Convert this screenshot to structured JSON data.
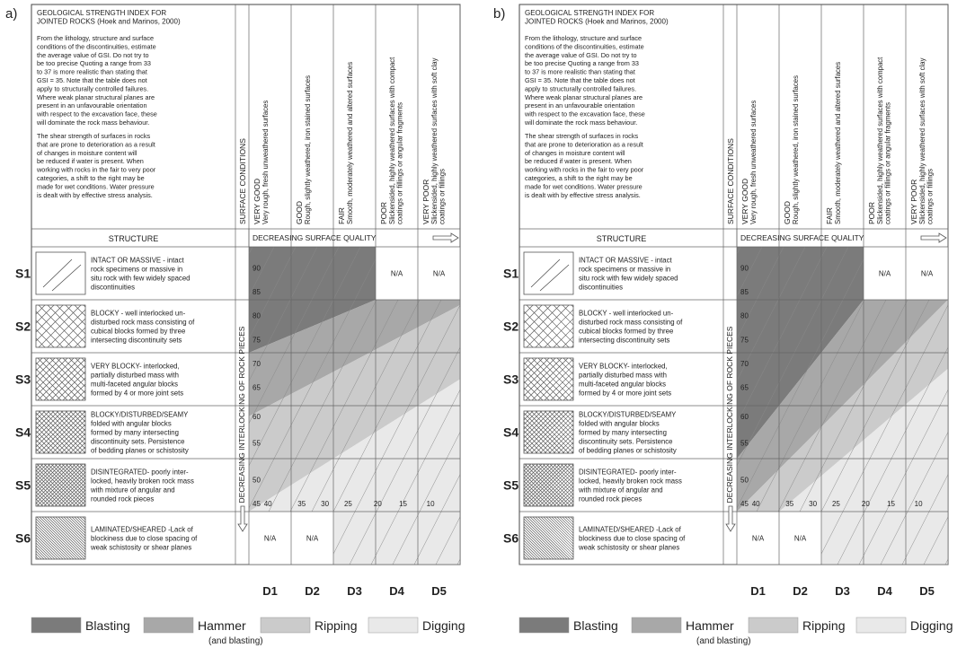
{
  "panels": [
    {
      "label": "a)",
      "title": [
        "GEOLOGICAL STRENGTH INDEX FOR",
        "JOINTED ROCKS (Hoek and Marinos, 2000)"
      ],
      "paragraph_1": [
        "From the lithology, structure and surface",
        "conditions of the discontinuities, estimate",
        "the average value of GSI. Do not try to",
        "be too precise Quoting a range from 33",
        " to 37 is more realistic than stating that",
        "GSI = 35. Note that the table does not",
        "apply to structurally controlled failures.",
        "Where weak planar structural planes are",
        "present in an unfavourable orientation",
        "with respect to the excavation face, these",
        "will dominate the rock mass behaviour."
      ],
      "paragraph_2": [
        "The shear strength of surfaces in rocks",
        "that are prone to deterioration as a result",
        "of changes in moisture content will",
        "be reduced if water is present. When",
        "working with rocks in the fair to very poor",
        "categories, a shift to the right may be",
        "made for wet conditions. Water pressure",
        "is dealt with by effective stress analysis."
      ],
      "structure_header": "STRUCTURE",
      "surface_header": "SURFACE CONDITIONS",
      "surface_axis": "DECREASING SURFACE QUALITY",
      "interlocking_axis": "DECREASING INTERLOCKING OF ROCK PIECES",
      "columns": [
        {
          "code": "D1",
          "class": "VERY GOOD",
          "desc": [
            "Very rough, fresh unweathered surfaces"
          ]
        },
        {
          "code": "D2",
          "class": "GOOD",
          "desc": [
            "Rough, slightly weathered, iron stained surfaces"
          ]
        },
        {
          "code": "D3",
          "class": "FAIR",
          "desc": [
            "Smooth, moderately weathered and altered surfaces"
          ]
        },
        {
          "code": "D4",
          "class": "POOR",
          "desc": [
            "Slickensided, highly weathered surfaces with compact",
            "coatings or fillings or angular fragments"
          ]
        },
        {
          "code": "D5",
          "class": "VERY POOR",
          "desc": [
            "Slickensided, highly weathered surfaces with soft clay",
            "coatings or fillings"
          ]
        }
      ],
      "rows": [
        {
          "code": "S1",
          "desc": [
            "INTACT OR MASSIVE  - intact",
            "rock specimens or massive in",
            "situ rock with few widely spaced",
            "discontinuities"
          ]
        },
        {
          "code": "S2",
          "desc": [
            "BLOCKY - well interlocked un-",
            "disturbed rock mass consisting of",
            "cubical blocks formed by three",
            "intersecting discontinuity sets"
          ]
        },
        {
          "code": "S3",
          "desc": [
            "VERY BLOCKY- interlocked,",
            "partially disturbed mass with",
            "multi-faceted angular blocks",
            "formed by 4 or more joint sets"
          ]
        },
        {
          "code": "S4",
          "desc": [
            "BLOCKY/DISTURBED/SEAMY",
            "folded with angular blocks",
            "formed by many intersecting",
            "discontinuity sets. Persistence",
            "of bedding planes or schistosity"
          ]
        },
        {
          "code": "S5",
          "desc": [
            "DISINTEGRATED- poorly inter-",
            "locked, heavily broken rock mass",
            "with mixture of angular and",
            "rounded rock pieces"
          ]
        },
        {
          "code": "S6",
          "desc": [
            "LAMINATED/SHEARED -Lack of",
            "blockiness due to close spacing of",
            "weak schistosity or shear planes"
          ]
        }
      ],
      "gsi_left": [
        90,
        85,
        80,
        75,
        70,
        65,
        60,
        55,
        50,
        45
      ],
      "gsi_bottom": [
        40,
        35,
        30,
        25,
        20,
        15,
        10
      ],
      "na": [
        "N/A",
        "N/A",
        "N/A",
        "N/A"
      ],
      "legend": [
        {
          "label": "Blasting",
          "color": "#7b7b7b"
        },
        {
          "label": "Hammer",
          "note": "(and blasting)",
          "color": "#a8a8a8"
        },
        {
          "label": "Ripping",
          "color": "#cbcbcb"
        },
        {
          "label": "Digging",
          "color": "#e9e9e9"
        }
      ]
    },
    {
      "label": "b)",
      "title": [
        "GEOLOGICAL STRENGTH INDEX FOR",
        "JOINTED ROCKS (Hoek and Marinos, 2000)"
      ],
      "paragraph_1": [
        "From the lithology, structure and surface",
        "conditions of the discontinuities, estimate",
        "the average value of GSI. Do not try to",
        "be too precise Quoting a range from 33",
        " to 37 is more realistic than stating that",
        "GSI = 35. Note that the table does not",
        "apply to structurally controlled failures.",
        "Where weak planar structural planes are",
        "present in an unfavourable orientation",
        "with respect to the excavation face, these",
        "will dominate the rock mass behaviour."
      ],
      "paragraph_2": [
        "The shear strength of surfaces in rocks",
        "that are prone to deterioration as a result",
        "of changes in moisture content will",
        "be reduced if water is present. When",
        "working with rocks in the fair to very poor",
        "categories, a shift to the right may be",
        "made for wet conditions. Water pressure",
        "is dealt with by effective stress analysis."
      ],
      "structure_header": "STRUCTURE",
      "surface_header": "SURFACE CONDITIONS",
      "surface_axis": "DECREASING SURFACE QUALITY",
      "interlocking_axis": "DECREASING INTERLOCKING OF ROCK PIECES",
      "columns": [
        {
          "code": "D1",
          "class": "VERY GOOD",
          "desc": [
            "Very rough, fresh unweathered surfaces"
          ]
        },
        {
          "code": "D2",
          "class": "GOOD",
          "desc": [
            "Rough, slightly weathered, iron stained surfaces"
          ]
        },
        {
          "code": "D3",
          "class": "FAIR",
          "desc": [
            "Smooth, moderately weathered and altered surfaces"
          ]
        },
        {
          "code": "D4",
          "class": "POOR",
          "desc": [
            "Slickensided, highly weathered surfaces with compact",
            "coatings or fillings or angular fragments"
          ]
        },
        {
          "code": "D5",
          "class": "VERY POOR",
          "desc": [
            "Slickensided, highly weathered surfaces with soft clay",
            "coatings or fillings"
          ]
        }
      ],
      "rows": [
        {
          "code": "S1",
          "desc": [
            "INTACT OR MASSIVE  - intact",
            "rock specimens or massive in",
            "situ rock with few widely spaced",
            "discontinuities"
          ]
        },
        {
          "code": "S2",
          "desc": [
            "BLOCKY - well interlocked un-",
            "disturbed rock mass consisting of",
            "cubical blocks formed by three",
            "intersecting discontinuity sets"
          ]
        },
        {
          "code": "S3",
          "desc": [
            "VERY BLOCKY- interlocked,",
            "partially disturbed mass with",
            "multi-faceted angular blocks",
            "formed by 4 or more joint sets"
          ]
        },
        {
          "code": "S4",
          "desc": [
            "BLOCKY/DISTURBED/SEAMY",
            "folded with angular blocks",
            "formed by many intersecting",
            "discontinuity sets. Persistence",
            "of bedding planes or schistosity"
          ]
        },
        {
          "code": "S5",
          "desc": [
            "DISINTEGRATED- poorly inter-",
            "locked, heavily broken rock mass",
            "with mixture of angular and",
            "rounded rock pieces"
          ]
        },
        {
          "code": "S6",
          "desc": [
            "LAMINATED/SHEARED -Lack of",
            "blockiness due to close spacing of",
            "weak schistosity or shear planes"
          ]
        }
      ],
      "gsi_left": [
        90,
        85,
        80,
        75,
        70,
        65,
        60,
        55,
        50,
        45
      ],
      "gsi_bottom": [
        40,
        35,
        30,
        25,
        20,
        15,
        10
      ],
      "na": [
        "N/A",
        "N/A",
        "N/A",
        "N/A"
      ],
      "legend": [
        {
          "label": "Blasting",
          "color": "#7b7b7b"
        },
        {
          "label": "Hammer",
          "note": "(and blasting)",
          "color": "#a8a8a8"
        },
        {
          "label": "Ripping",
          "color": "#cbcbcb"
        },
        {
          "label": "Digging",
          "color": "#e9e9e9"
        }
      ]
    }
  ]
}
